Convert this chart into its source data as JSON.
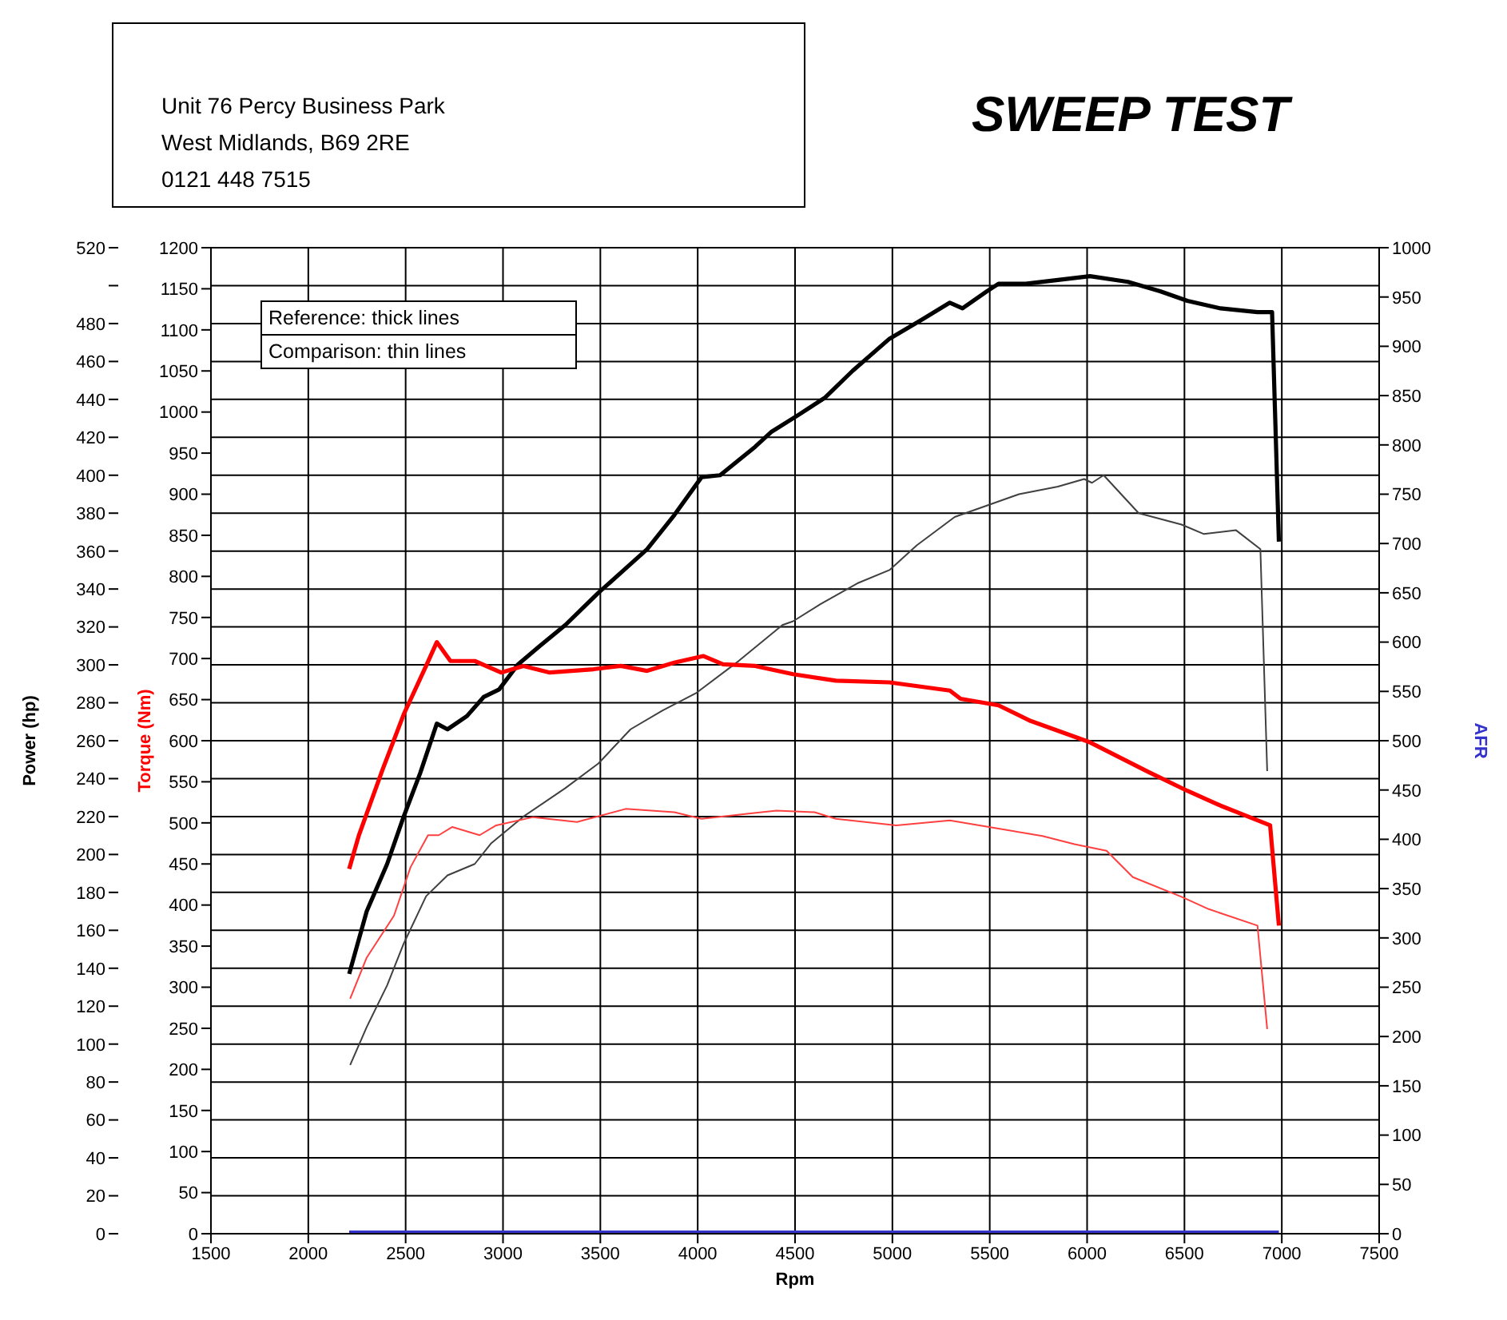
{
  "chart_data": {
    "type": "line",
    "title": "SWEEP TEST",
    "xlabel": "Rpm",
    "ylabel": "Power (hp)",
    "y2label": "Torque (Nm)",
    "y3label": "AFR",
    "annotations": [
      "Unit 76 Percy Business Park",
      "West Midlands, B69 2RE",
      "0121 448 7515",
      "Reference: thick lines",
      "Comparison: thin lines"
    ],
    "xlim": [
      1500,
      7500
    ],
    "xticks": [
      1500,
      2000,
      2500,
      3000,
      3500,
      4000,
      4500,
      5000,
      5500,
      6000,
      6500,
      7000,
      7500
    ],
    "ylim": [
      0,
      520
    ],
    "yticks": [
      0,
      20,
      40,
      60,
      80,
      100,
      120,
      140,
      160,
      180,
      200,
      220,
      240,
      260,
      280,
      300,
      320,
      340,
      360,
      380,
      400,
      420,
      440,
      460,
      480,
      {
        "value": 500,
        "label": null
      },
      520
    ],
    "y2lim": [
      0,
      1200
    ],
    "y2ticks": [
      0,
      50,
      100,
      150,
      200,
      250,
      300,
      350,
      400,
      450,
      500,
      550,
      600,
      650,
      700,
      750,
      800,
      850,
      900,
      950,
      1000,
      1050,
      1100,
      1150,
      1200
    ],
    "y3lim": [
      0,
      1000
    ],
    "y3ticks": [
      0,
      50,
      100,
      150,
      200,
      250,
      300,
      350,
      400,
      450,
      500,
      550,
      600,
      650,
      700,
      750,
      800,
      850,
      900,
      950,
      1000
    ],
    "grid": true,
    "legend": false,
    "marker": "none",
    "series": [
      {
        "color": "#000000",
        "axis": "y",
        "x": [
          2210,
          2300,
          2405,
          2490,
          2575,
          2660,
          2715,
          2815,
          2900,
          2980,
          3075,
          3190,
          3320,
          3490,
          3740,
          3880,
          4020,
          4115,
          4295,
          4380,
          4520,
          4655,
          4795,
          4985,
          5150,
          5295,
          5360,
          5485,
          5545,
          5685,
          5850,
          6015,
          6210,
          6375,
          6515,
          6685,
          6875,
          6950,
          6985
        ],
        "values": [
          137,
          170,
          195,
          220,
          243,
          269,
          266,
          273,
          283,
          287,
          300,
          310,
          321,
          338,
          361,
          379,
          399,
          400,
          415,
          423,
          432,
          441,
          455,
          472,
          482,
          491,
          488,
          497,
          501,
          501,
          503,
          505,
          502,
          497,
          492,
          488,
          486,
          486,
          365
        ]
      },
      {
        "color": "#404040",
        "axis": "y",
        "x": [
          2215,
          2300,
          2405,
          2490,
          2605,
          2715,
          2855,
          2940,
          3105,
          3320,
          3490,
          3655,
          3820,
          3990,
          4210,
          4435,
          4490,
          4630,
          4820,
          4985,
          5125,
          5320,
          5485,
          5650,
          5850,
          5985,
          6025,
          6085,
          6265,
          6485,
          6600,
          6765,
          6890,
          6925
        ],
        "values": [
          89,
          109,
          131,
          153,
          178,
          189,
          195,
          206,
          220,
          235,
          248,
          266,
          276,
          285,
          302,
          321,
          323,
          332,
          343,
          350,
          363,
          378,
          384,
          390,
          394,
          398,
          396,
          400,
          380,
          374,
          369,
          371,
          361,
          244
        ]
      },
      {
        "color": "#ff0000",
        "axis": "y2",
        "x": [
          2210,
          2260,
          2380,
          2490,
          2605,
          2660,
          2730,
          2855,
          2990,
          3105,
          3240,
          3465,
          3605,
          3740,
          3880,
          4030,
          4130,
          4295,
          4490,
          4710,
          4985,
          5295,
          5350,
          5545,
          5710,
          6015,
          6315,
          6515,
          6685,
          6940,
          6985
        ],
        "values": [
          444,
          485,
          564,
          632,
          691,
          720,
          697,
          697,
          683,
          691,
          683,
          687,
          691,
          685,
          695,
          703,
          693,
          691,
          681,
          673,
          671,
          661,
          651,
          643,
          624,
          598,
          562,
          539,
          521,
          497,
          375
        ]
      },
      {
        "color": "#ff4040",
        "axis": "y2",
        "x": [
          2215,
          2300,
          2440,
          2525,
          2615,
          2670,
          2740,
          2880,
          2965,
          3155,
          3380,
          3630,
          3880,
          4020,
          4405,
          4600,
          4710,
          5020,
          5295,
          5545,
          5770,
          5935,
          6100,
          6235,
          6485,
          6625,
          6875,
          6925
        ],
        "values": [
          286,
          336,
          387,
          446,
          485,
          485,
          495,
          485,
          497,
          507,
          501,
          517,
          513,
          505,
          515,
          513,
          505,
          497,
          503,
          493,
          484,
          474,
          466,
          434,
          410,
          395,
          375,
          249
        ]
      },
      {
        "color": "#3333cc",
        "axis": "y3",
        "x": [
          2210,
          6985
        ],
        "values": [
          0,
          0
        ]
      }
    ]
  }
}
